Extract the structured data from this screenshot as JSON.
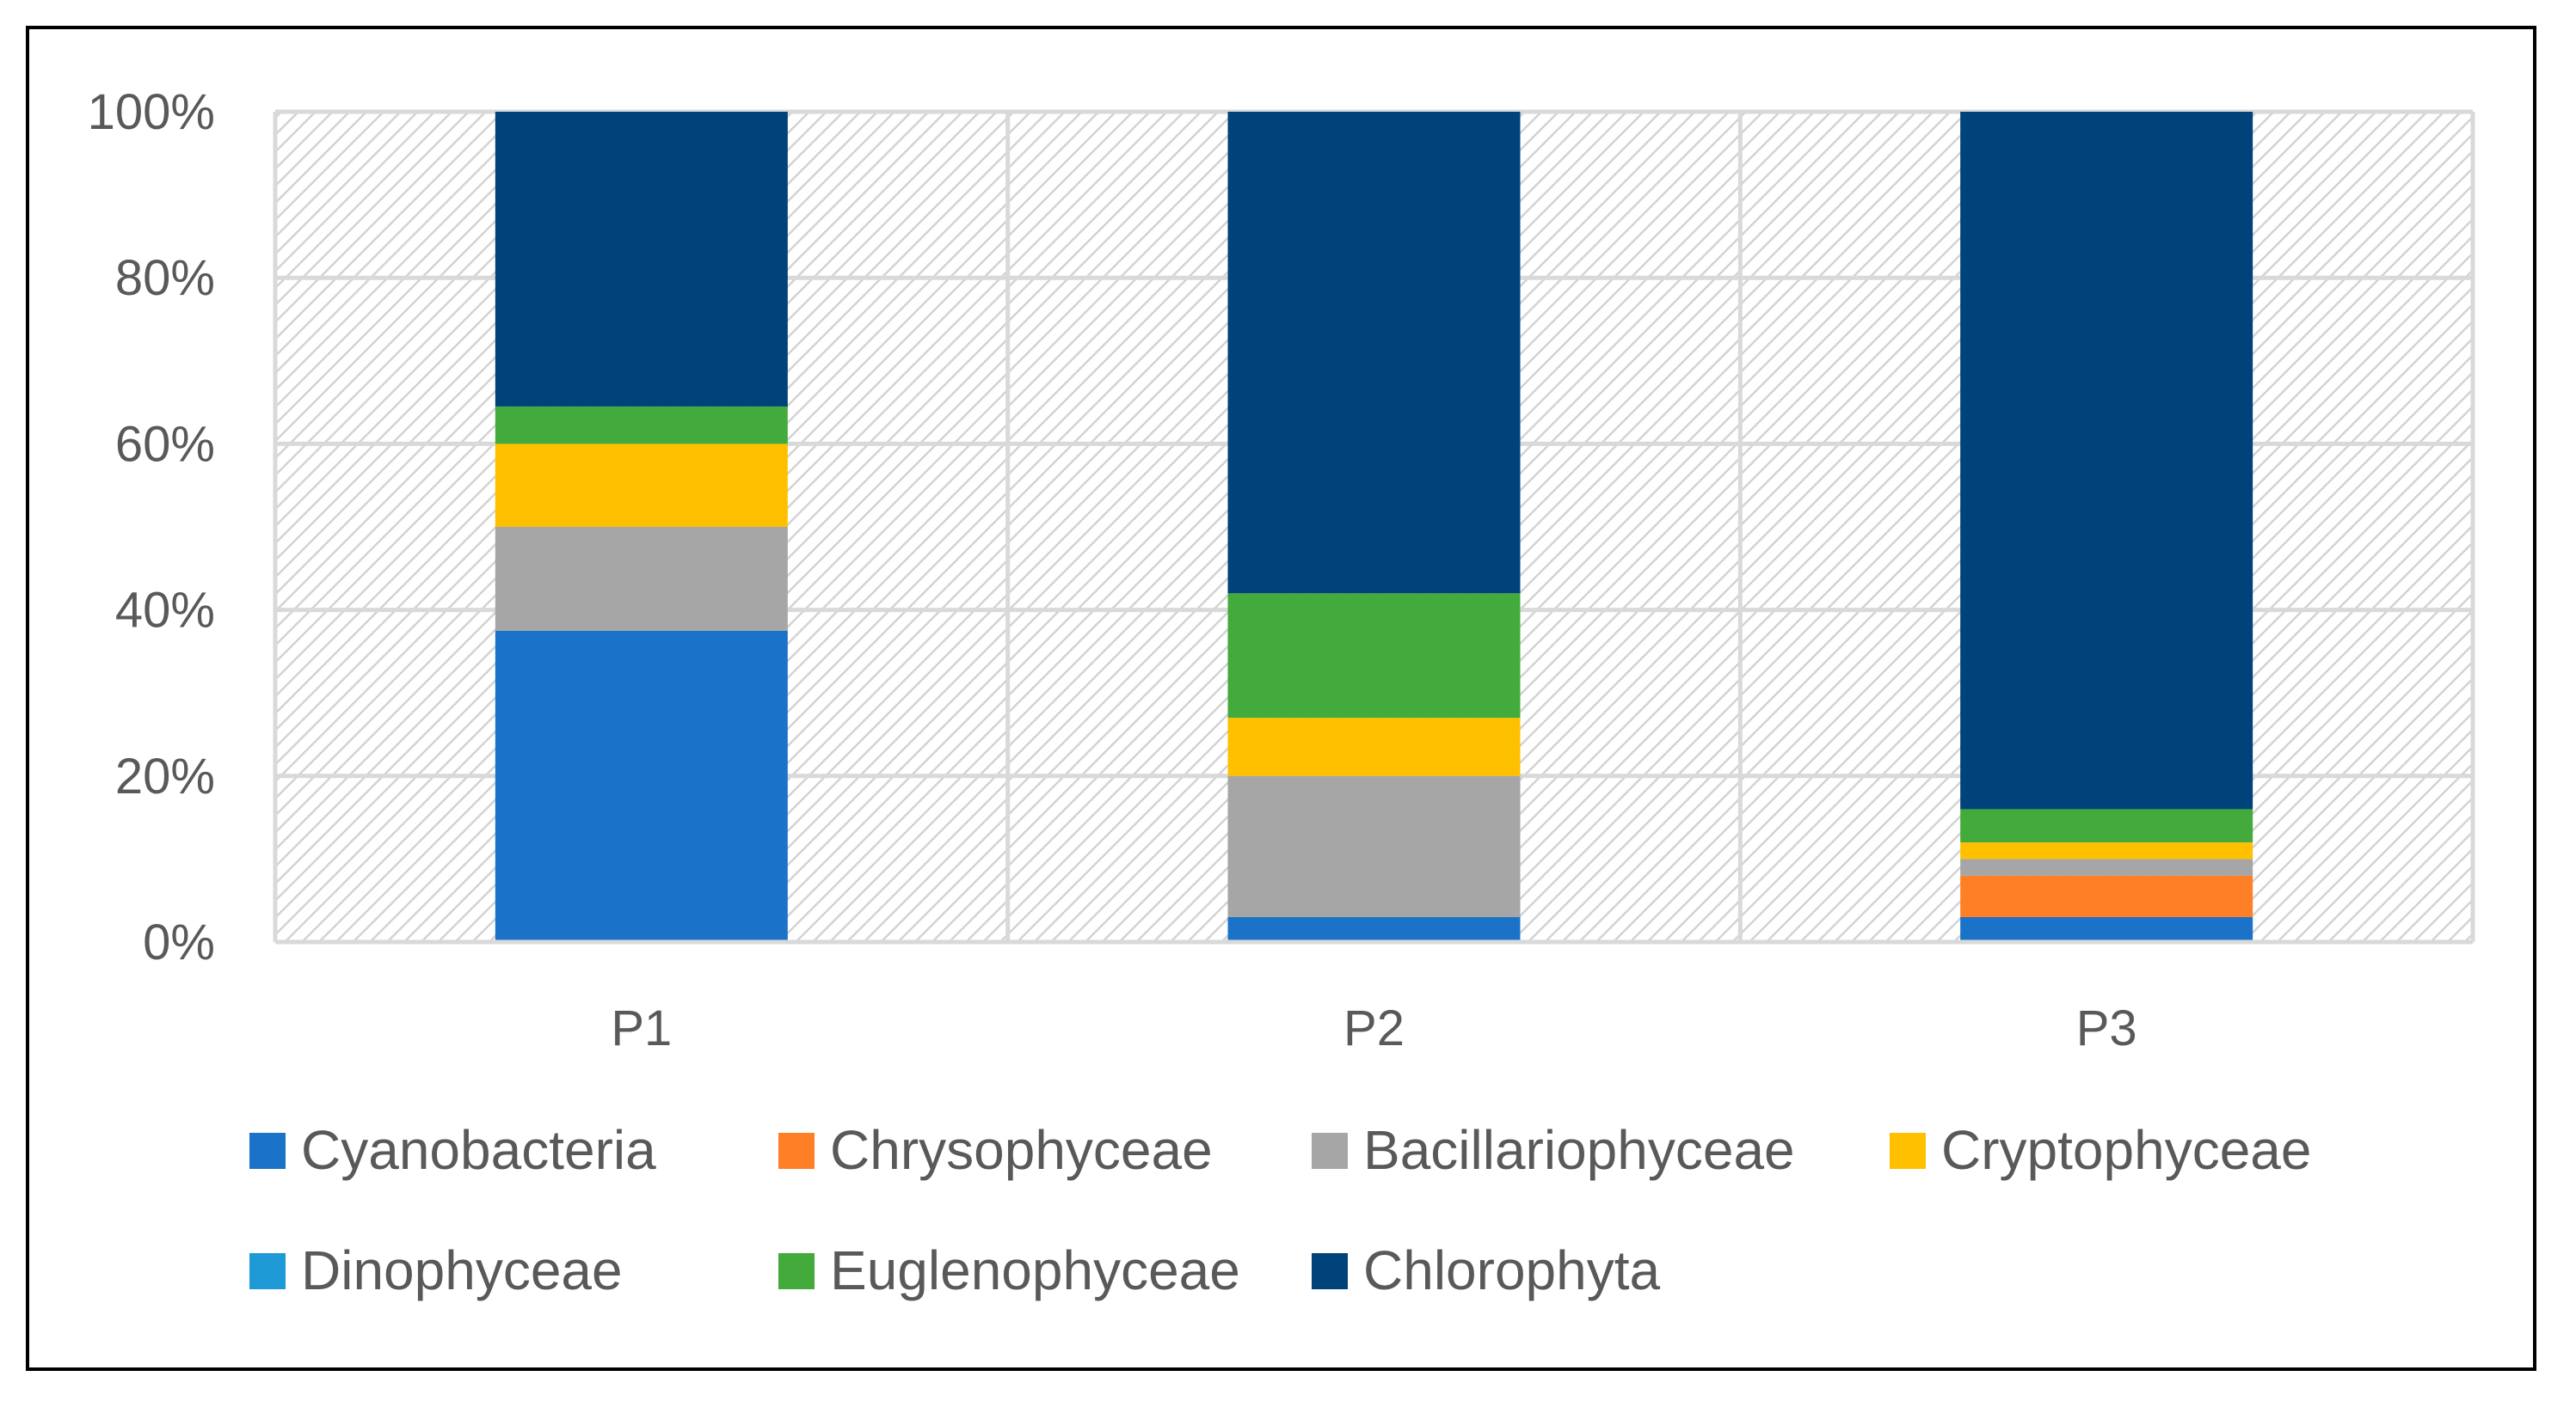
{
  "chart_data": {
    "type": "bar",
    "stacked": true,
    "percent": true,
    "title": "",
    "xlabel": "",
    "ylabel": "",
    "ylim": [
      0,
      100
    ],
    "yticks": [
      "0%",
      "20%",
      "40%",
      "60%",
      "80%",
      "100%"
    ],
    "categories": [
      "P1",
      "P2",
      "P3"
    ],
    "series": [
      {
        "name": "Cyanobacteria",
        "color": "#1B73C9",
        "values": [
          37.5,
          3,
          3
        ]
      },
      {
        "name": "Chrysophyceae",
        "color": "#FF7F27",
        "values": [
          0,
          0,
          5
        ]
      },
      {
        "name": "Bacillariophyceae",
        "color": "#A6A6A6",
        "values": [
          12.5,
          17,
          2
        ]
      },
      {
        "name": "Cryptophyceae",
        "color": "#FFC000",
        "values": [
          10,
          7,
          2
        ]
      },
      {
        "name": "Dinophyceae",
        "color": "#1E9BD7",
        "values": [
          0,
          0,
          0
        ]
      },
      {
        "name": "Euglenophyceae",
        "color": "#43AB3B",
        "values": [
          4.5,
          15,
          4
        ]
      },
      {
        "name": "Chlorophyta",
        "color": "#00427A",
        "values": [
          35.5,
          58,
          84
        ]
      }
    ],
    "legend_position": "bottom",
    "grid": true
  }
}
